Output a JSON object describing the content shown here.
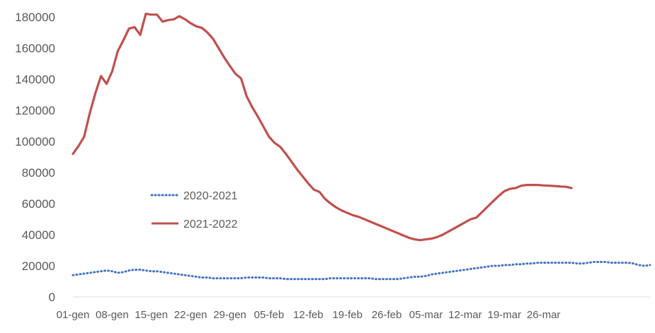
{
  "chart_data": {
    "type": "line",
    "x_tick_labels": [
      "01-gen",
      "08-gen",
      "15-gen",
      "22-gen",
      "29-gen",
      "05-feb",
      "12-feb",
      "19-feb",
      "26-feb",
      "05-mar",
      "12-mar",
      "19-mar",
      "26-mar"
    ],
    "y_tick_labels": [
      "0",
      "20000",
      "40000",
      "60000",
      "80000",
      "100000",
      "120000",
      "140000",
      "160000",
      "180000"
    ],
    "ylim": [
      0,
      180000
    ],
    "legend_position": "center-left",
    "grid": false,
    "series": [
      {
        "name": "2020-2021",
        "color": "#4472C4",
        "style": "dotted",
        "values": [
          14000,
          14500,
          15000,
          15500,
          16000,
          16500,
          17000,
          16500,
          15500,
          16000,
          17000,
          17500,
          17500,
          17000,
          16500,
          16500,
          16000,
          15500,
          15000,
          14500,
          14000,
          13500,
          13000,
          12500,
          12500,
          12000,
          12000,
          12000,
          12000,
          12000,
          12000,
          12500,
          12500,
          12500,
          12500,
          12000,
          12000,
          12000,
          11500,
          11500,
          11500,
          11500,
          11500,
          11500,
          11500,
          11500,
          12000,
          12000,
          12000,
          12000,
          12000,
          12000,
          12000,
          12000,
          11500,
          11500,
          11500,
          11500,
          11500,
          12000,
          12500,
          13000,
          13000,
          13500,
          14500,
          15000,
          15500,
          16000,
          16500,
          17000,
          17500,
          18000,
          18500,
          19000,
          19500,
          20000,
          20000,
          20500,
          20500,
          21000,
          21000,
          21500,
          21500,
          22000,
          22000,
          22000,
          22000,
          22000,
          22000,
          22000,
          21500,
          21500,
          22000,
          22500,
          22500,
          22500,
          22000,
          22000,
          22000,
          22000,
          21500,
          20500,
          20000,
          20500
        ]
      },
      {
        "name": "2021-2022",
        "color": "#C0504D",
        "style": "solid",
        "values": [
          92000,
          97000,
          103000,
          118000,
          131000,
          142000,
          137000,
          145000,
          158000,
          165000,
          172500,
          173500,
          168500,
          182000,
          181500,
          181500,
          177000,
          178000,
          178500,
          180500,
          178500,
          176000,
          174000,
          173000,
          170000,
          166000,
          160000,
          154000,
          148500,
          143500,
          140500,
          129000,
          122000,
          116000,
          109500,
          103000,
          99000,
          96500,
          92000,
          87000,
          82000,
          77500,
          73000,
          69000,
          67500,
          63000,
          60000,
          57500,
          55500,
          54000,
          52500,
          51500,
          50000,
          48500,
          47000,
          45500,
          44000,
          42500,
          41000,
          39500,
          38000,
          37000,
          36500,
          37000,
          37500,
          38500,
          40000,
          42000,
          44000,
          46000,
          48000,
          50000,
          51000,
          54500,
          58000,
          61500,
          65000,
          68000,
          69500,
          70000,
          71500,
          72000,
          72000,
          72000,
          71700,
          71500,
          71300,
          71000,
          70800,
          70000
        ]
      }
    ]
  }
}
